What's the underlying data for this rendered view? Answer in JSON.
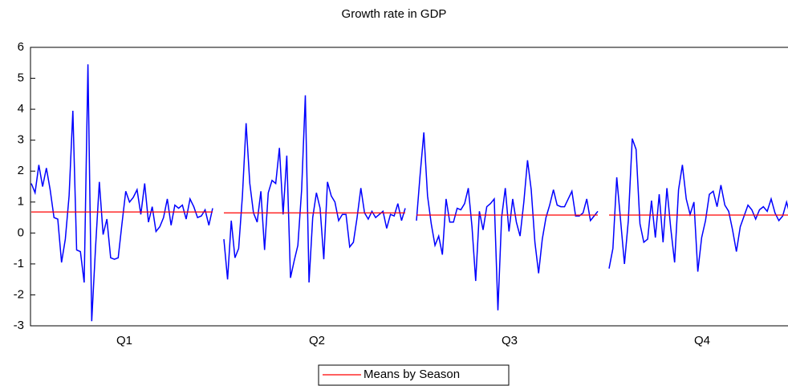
{
  "chart_data": {
    "type": "seasonal-line",
    "title": "Growth rate in GDP",
    "ylim": [
      -3,
      6
    ],
    "yticks": [
      -3,
      -2,
      -1,
      0,
      1,
      2,
      3,
      4,
      5,
      6
    ],
    "line_color": "#0000ff",
    "mean_series": {
      "name": "Means by Season",
      "color": "#ff0000"
    },
    "panels": [
      {
        "label": "Q1",
        "mean": 0.68,
        "values": [
          1.6,
          1.3,
          2.2,
          1.5,
          2.1,
          1.4,
          0.5,
          0.45,
          -0.95,
          -0.2,
          1.2,
          3.95,
          -0.55,
          -0.6,
          -1.6,
          5.45,
          -2.85,
          -0.5,
          1.65,
          -0.05,
          0.45,
          -0.8,
          -0.85,
          -0.8,
          0.3,
          1.35,
          1.0,
          1.15,
          1.4,
          0.6,
          1.6,
          0.35,
          0.85,
          0.05,
          0.2,
          0.5,
          1.1,
          0.25,
          0.9,
          0.8,
          0.9,
          0.45,
          1.1,
          0.85,
          0.5,
          0.55,
          0.75,
          0.25,
          0.8
        ]
      },
      {
        "label": "Q2",
        "mean": 0.65,
        "values": [
          -0.2,
          -1.5,
          0.4,
          -0.8,
          -0.5,
          1.2,
          3.55,
          1.6,
          0.65,
          0.35,
          1.35,
          -0.55,
          1.3,
          1.7,
          1.6,
          2.75,
          0.6,
          2.5,
          -1.45,
          -0.9,
          -0.4,
          1.4,
          4.45,
          -1.6,
          0.5,
          1.3,
          0.8,
          -0.85,
          1.65,
          1.2,
          1.0,
          0.4,
          0.6,
          0.6,
          -0.45,
          -0.3,
          0.5,
          1.45,
          0.65,
          0.45,
          0.7,
          0.5,
          0.6,
          0.7,
          0.15,
          0.6,
          0.55,
          0.95,
          0.4,
          0.8
        ]
      },
      {
        "label": "Q3",
        "mean": 0.58,
        "values": [
          0.4,
          1.9,
          3.25,
          1.2,
          0.3,
          -0.4,
          -0.1,
          -0.7,
          1.1,
          0.35,
          0.35,
          0.8,
          0.75,
          0.95,
          1.45,
          0.2,
          -1.55,
          0.7,
          0.1,
          0.85,
          0.95,
          1.1,
          -2.5,
          0.5,
          1.45,
          0.05,
          1.1,
          0.35,
          -0.1,
          1.0,
          2.35,
          1.4,
          -0.3,
          -1.3,
          -0.2,
          0.5,
          0.9,
          1.4,
          0.9,
          0.85,
          0.85,
          1.1,
          1.35,
          0.55,
          0.55,
          0.65,
          1.1,
          0.4,
          0.55,
          0.7
        ]
      },
      {
        "label": "Q4",
        "mean": 0.58,
        "values": [
          -1.15,
          -0.5,
          1.8,
          0.4,
          -1.0,
          0.4,
          3.05,
          2.7,
          0.3,
          -0.3,
          -0.2,
          1.05,
          -0.15,
          1.25,
          -0.3,
          1.45,
          0.15,
          -0.95,
          1.4,
          2.2,
          1.1,
          0.6,
          1.0,
          -1.25,
          -0.15,
          0.4,
          1.25,
          1.35,
          0.85,
          1.55,
          0.9,
          0.7,
          0.1,
          -0.6,
          0.2,
          0.55,
          0.9,
          0.75,
          0.45,
          0.75,
          0.85,
          0.7,
          1.1,
          0.65,
          0.4,
          0.55,
          1.0,
          0.55
        ]
      }
    ]
  }
}
